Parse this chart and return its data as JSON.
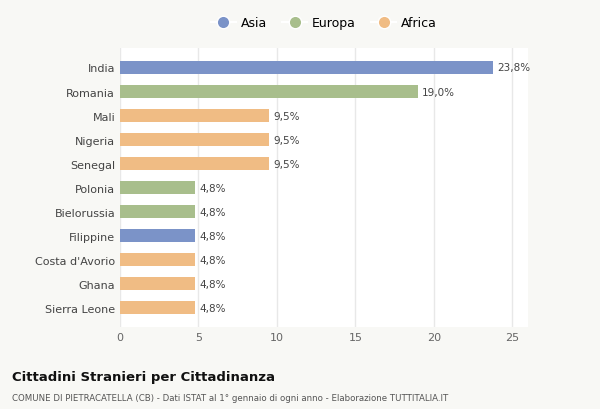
{
  "categories": [
    "India",
    "Romania",
    "Mali",
    "Nigeria",
    "Senegal",
    "Polonia",
    "Bielorussia",
    "Filippine",
    "Costa d'Avorio",
    "Ghana",
    "Sierra Leone"
  ],
  "values": [
    23.8,
    19.0,
    9.5,
    9.5,
    9.5,
    4.8,
    4.8,
    4.8,
    4.8,
    4.8,
    4.8
  ],
  "labels": [
    "23,8%",
    "19,0%",
    "9,5%",
    "9,5%",
    "9,5%",
    "4,8%",
    "4,8%",
    "4,8%",
    "4,8%",
    "4,8%",
    "4,8%"
  ],
  "continents": [
    "Asia",
    "Europa",
    "Africa",
    "Africa",
    "Africa",
    "Europa",
    "Europa",
    "Asia",
    "Africa",
    "Africa",
    "Africa"
  ],
  "colors": {
    "Asia": "#7b93c8",
    "Europa": "#a8be8c",
    "Africa": "#f0bc84"
  },
  "legend_labels": [
    "Asia",
    "Europa",
    "Africa"
  ],
  "xlim": [
    0,
    26
  ],
  "xticks": [
    0,
    5,
    10,
    15,
    20,
    25
  ],
  "title": "Cittadini Stranieri per Cittadinanza",
  "subtitle": "COMUNE DI PIETRACATELLA (CB) - Dati ISTAT al 1° gennaio di ogni anno - Elaborazione TUTTITALIA.IT",
  "bg_color": "#f8f8f5",
  "plot_bg_color": "#ffffff",
  "grid_color": "#e8e8e8",
  "bar_height": 0.55
}
